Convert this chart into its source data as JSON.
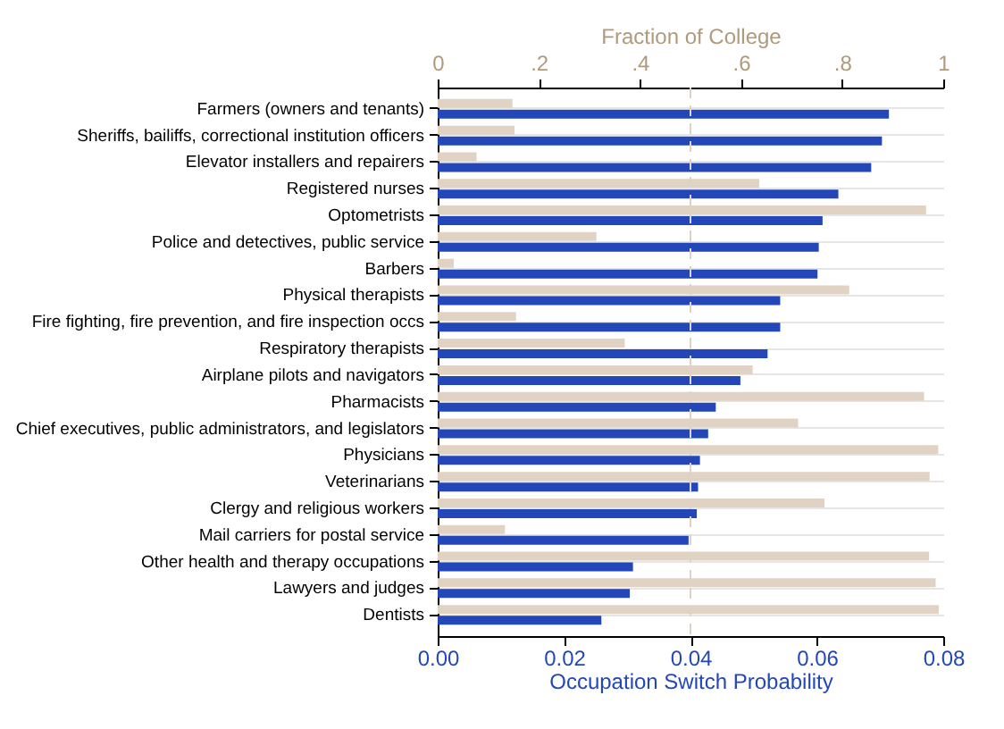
{
  "chart_data": {
    "type": "bar",
    "orientation": "horizontal",
    "categories": [
      "Farmers (owners and tenants)",
      "Sheriffs, bailiffs, correctional institution officers",
      "Elevator installers and repairers",
      "Registered nurses",
      "Optometrists",
      "Police and detectives, public service",
      "Barbers",
      "Physical therapists",
      "Fire fighting, fire prevention, and fire inspection occs",
      "Respiratory therapists",
      "Airplane pilots and navigators",
      "Pharmacists",
      "Chief executives, public administrators, and legislators",
      "Physicians",
      "Veterinarians",
      "Clergy and religious workers",
      "Mail carriers for postal service",
      "Other health and therapy occupations",
      "Lawyers and judges",
      "Dentists"
    ],
    "series": [
      {
        "color": "#e0d3c3",
        "axis": "x2",
        "values": [
          0.148,
          0.152,
          0.077,
          0.636,
          0.966,
          0.314,
          0.032,
          0.814,
          0.155,
          0.37,
          0.623,
          0.962,
          0.713,
          0.99,
          0.973,
          0.765,
          0.133,
          0.972,
          0.985,
          0.991
        ]
      },
      {
        "color": "#2346b8",
        "values": [
          0.0714,
          0.0703,
          0.0686,
          0.0634,
          0.0609,
          0.0603,
          0.0601,
          0.0542,
          0.0542,
          0.0522,
          0.0479,
          0.044,
          0.0428,
          0.0415,
          0.0412,
          0.041,
          0.0397,
          0.0309,
          0.0304,
          0.0259
        ]
      }
    ],
    "xlabel": "Occupation Switch Probability",
    "x2label": "Fraction of College",
    "xlim": [
      0,
      0.08
    ],
    "xticks": [
      {
        "value": 0,
        "label": "0.00"
      },
      {
        "value": 0.02,
        "label": "0.02"
      },
      {
        "value": 0.04,
        "label": "0.04"
      },
      {
        "value": 0.06,
        "label": "0.06"
      },
      {
        "value": 0.08,
        "label": "0.08"
      }
    ],
    "x2lim": [
      0,
      1
    ],
    "x2ticks": [
      0,
      {
        "value": 0.2,
        "label": ".2"
      },
      {
        "value": 0.4,
        "label": ".4"
      },
      {
        "value": 0.6,
        "label": ".6"
      },
      {
        "value": 0.8,
        "label": ".8"
      },
      1
    ],
    "ref_lines": [
      {
        "axis": "x",
        "value": 0.04,
        "color": "#e0d3c3",
        "line_style": "dashed"
      }
    ],
    "grid": "y"
  }
}
